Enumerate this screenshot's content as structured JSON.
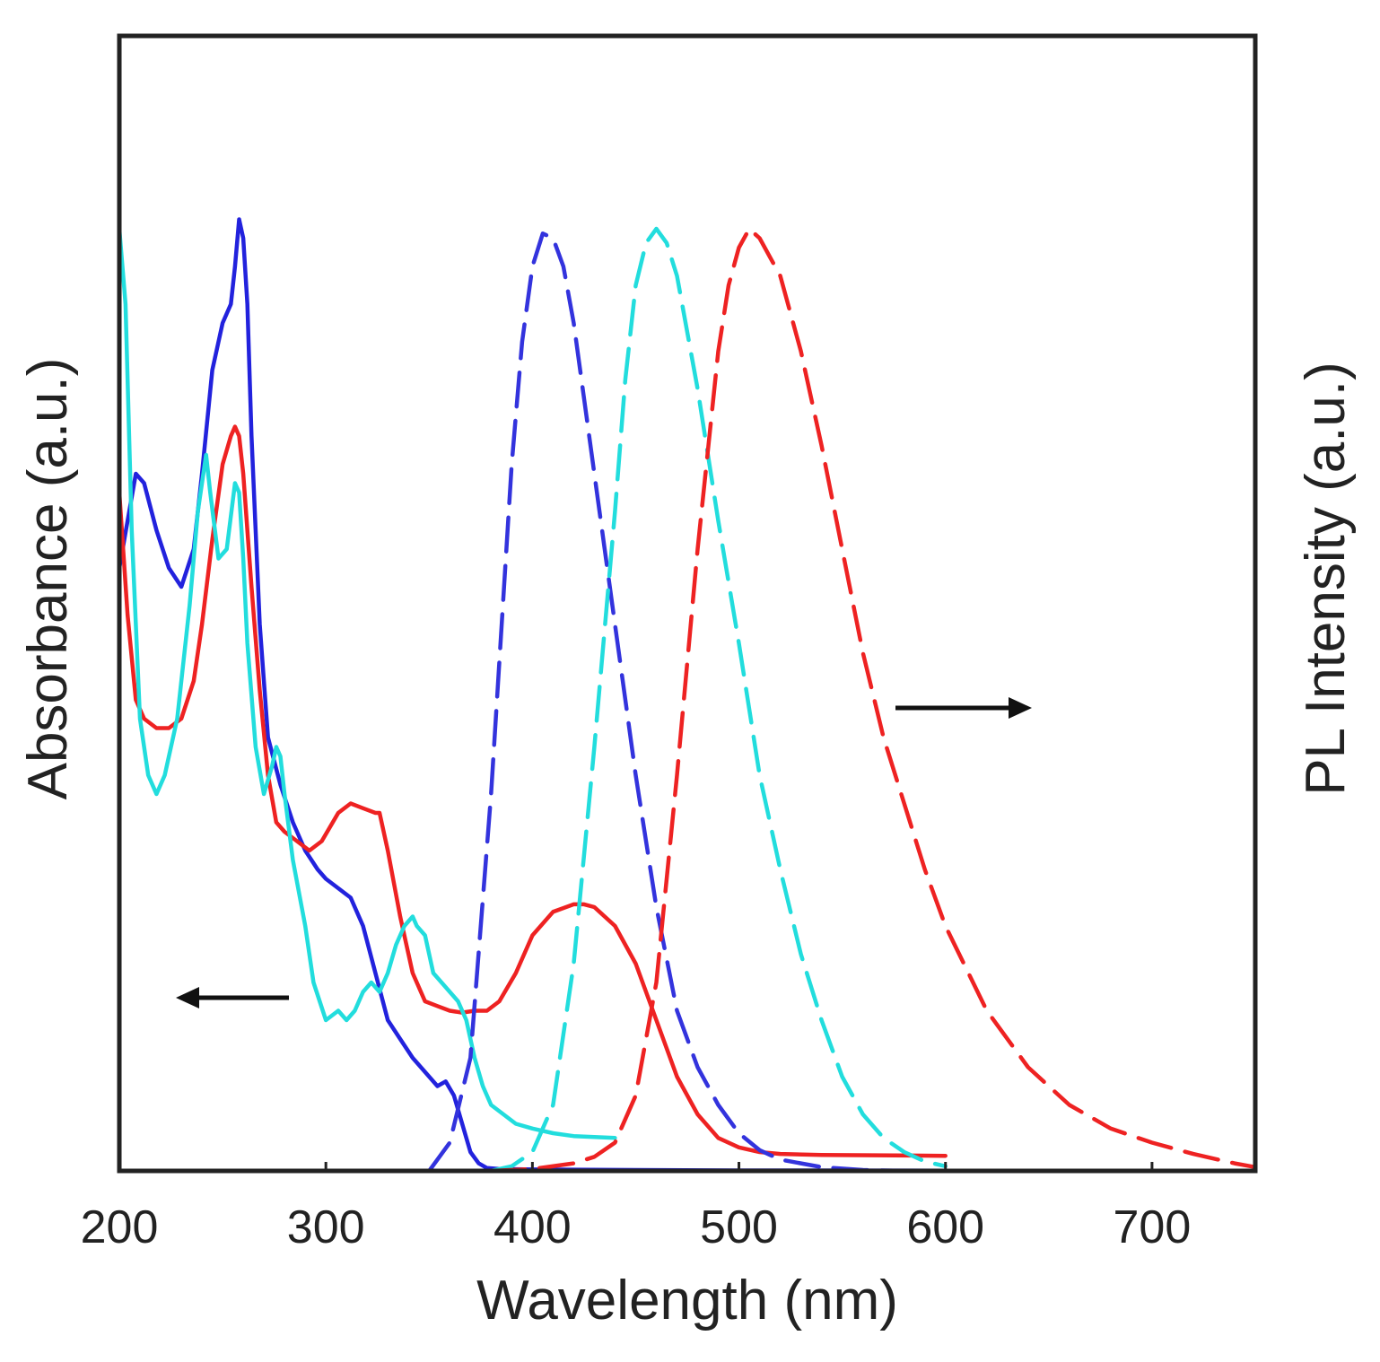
{
  "chart_data": {
    "type": "line",
    "title": "",
    "xlabel": "Wavelength (nm)",
    "ylabel_left": "Absorbance (a.u.)",
    "ylabel_right": "PL Intensity (a.u.)",
    "xlim": [
      200,
      750
    ],
    "ylim": [
      0,
      1.0
    ],
    "x_ticks": [
      200,
      300,
      400,
      500,
      600,
      700
    ],
    "x_tick_labels": [
      "200",
      "300",
      "400",
      "500",
      "600",
      "700"
    ],
    "grid": false,
    "annotations": [
      {
        "type": "arrow",
        "direction": "left",
        "meaning": "absorbance axis"
      },
      {
        "type": "arrow",
        "direction": "right",
        "meaning": "PL intensity axis"
      }
    ],
    "series": [
      {
        "name": "absorbance-blue",
        "color": "#2222dd",
        "dash": "solid",
        "axis": "left",
        "x": [
          200,
          204,
          208,
          212,
          218,
          224,
          230,
          236,
          240,
          245,
          250,
          254,
          256,
          258,
          260,
          262,
          264,
          268,
          272,
          278,
          284,
          290,
          296,
          300,
          306,
          312,
          318,
          324,
          330,
          336,
          342,
          346,
          350,
          354,
          358,
          362,
          366,
          370,
          374,
          378,
          384,
          400,
          450,
          500,
          600,
          750
        ],
        "y": [
          0.64,
          0.69,
          0.74,
          0.73,
          0.68,
          0.64,
          0.62,
          0.66,
          0.74,
          0.85,
          0.9,
          0.92,
          0.96,
          1.01,
          0.99,
          0.92,
          0.78,
          0.58,
          0.46,
          0.41,
          0.37,
          0.34,
          0.32,
          0.31,
          0.3,
          0.29,
          0.26,
          0.21,
          0.16,
          0.14,
          0.12,
          0.11,
          0.1,
          0.09,
          0.095,
          0.08,
          0.05,
          0.02,
          0.008,
          0.003,
          0.002,
          0.0015,
          0.001,
          0.0005,
          0.0003,
          0.0001
        ]
      },
      {
        "name": "absorbance-red",
        "color": "#ee2222",
        "dash": "solid",
        "axis": "left",
        "x": [
          200,
          204,
          208,
          212,
          218,
          224,
          230,
          236,
          240,
          245,
          250,
          254,
          256,
          258,
          260,
          264,
          268,
          272,
          276,
          280,
          286,
          292,
          298,
          306,
          312,
          318,
          324,
          326,
          330,
          336,
          342,
          348,
          354,
          360,
          366,
          372,
          378,
          384,
          392,
          400,
          410,
          420,
          425,
          430,
          440,
          450,
          460,
          470,
          480,
          490,
          500,
          510,
          520,
          540,
          600
        ],
        "y": [
          0.72,
          0.59,
          0.5,
          0.48,
          0.47,
          0.47,
          0.48,
          0.52,
          0.58,
          0.67,
          0.75,
          0.78,
          0.79,
          0.78,
          0.74,
          0.62,
          0.51,
          0.42,
          0.37,
          0.36,
          0.35,
          0.34,
          0.35,
          0.38,
          0.39,
          0.385,
          0.38,
          0.38,
          0.34,
          0.27,
          0.21,
          0.18,
          0.175,
          0.17,
          0.168,
          0.17,
          0.17,
          0.18,
          0.21,
          0.25,
          0.275,
          0.283,
          0.283,
          0.28,
          0.26,
          0.22,
          0.16,
          0.1,
          0.06,
          0.035,
          0.025,
          0.02,
          0.018,
          0.017,
          0.016
        ]
      },
      {
        "name": "absorbance-cyan",
        "color": "#22dddd",
        "dash": "solid",
        "axis": "left",
        "x": [
          200,
          203,
          206,
          210,
          214,
          218,
          222,
          228,
          234,
          238,
          242,
          244,
          248,
          252,
          256,
          258,
          260,
          262,
          266,
          270,
          274,
          276,
          278,
          280,
          284,
          290,
          294,
          300,
          306,
          310,
          314,
          318,
          322,
          326,
          330,
          334,
          338,
          342,
          344,
          348,
          352,
          356,
          360,
          364,
          368,
          372,
          376,
          380,
          386,
          392,
          400,
          410,
          420,
          440
        ],
        "y": [
          1.0,
          0.92,
          0.68,
          0.48,
          0.42,
          0.4,
          0.42,
          0.48,
          0.6,
          0.7,
          0.76,
          0.72,
          0.65,
          0.66,
          0.73,
          0.72,
          0.65,
          0.56,
          0.45,
          0.4,
          0.43,
          0.45,
          0.44,
          0.4,
          0.33,
          0.26,
          0.2,
          0.16,
          0.17,
          0.16,
          0.17,
          0.19,
          0.2,
          0.19,
          0.21,
          0.24,
          0.26,
          0.27,
          0.26,
          0.25,
          0.21,
          0.2,
          0.19,
          0.18,
          0.16,
          0.12,
          0.09,
          0.07,
          0.06,
          0.05,
          0.045,
          0.04,
          0.037,
          0.035
        ]
      },
      {
        "name": "pl-blue",
        "color": "#3333dd",
        "dash": "dashed",
        "axis": "right",
        "x": [
          350,
          360,
          370,
          380,
          390,
          395,
          400,
          405,
          410,
          415,
          420,
          425,
          430,
          440,
          450,
          460,
          470,
          480,
          490,
          500,
          510,
          520,
          540,
          560,
          580
        ],
        "y": [
          0.0,
          0.03,
          0.12,
          0.4,
          0.75,
          0.88,
          0.96,
          0.995,
          0.99,
          0.96,
          0.9,
          0.82,
          0.74,
          0.58,
          0.42,
          0.28,
          0.17,
          0.11,
          0.07,
          0.04,
          0.022,
          0.012,
          0.004,
          0.001,
          0.0
        ]
      },
      {
        "name": "pl-cyan",
        "color": "#22dddd",
        "dash": "dashed",
        "axis": "right",
        "x": [
          380,
          390,
          400,
          410,
          420,
          430,
          440,
          445,
          450,
          455,
          460,
          465,
          470,
          480,
          490,
          500,
          510,
          520,
          530,
          540,
          550,
          560,
          570,
          580,
          590,
          600
        ],
        "y": [
          0.0,
          0.005,
          0.02,
          0.07,
          0.22,
          0.45,
          0.7,
          0.84,
          0.94,
          0.985,
          1.0,
          0.985,
          0.95,
          0.83,
          0.69,
          0.56,
          0.42,
          0.32,
          0.23,
          0.16,
          0.1,
          0.06,
          0.035,
          0.02,
          0.01,
          0.005
        ]
      },
      {
        "name": "pl-red",
        "color": "#ee2222",
        "dash": "dashed",
        "axis": "right",
        "x": [
          380,
          400,
          420,
          430,
          440,
          450,
          460,
          470,
          480,
          490,
          495,
          500,
          505,
          510,
          520,
          530,
          540,
          550,
          560,
          570,
          580,
          590,
          600,
          620,
          640,
          660,
          680,
          700,
          720,
          740,
          750
        ],
        "y": [
          0.0,
          0.002,
          0.008,
          0.015,
          0.03,
          0.08,
          0.2,
          0.42,
          0.66,
          0.87,
          0.94,
          0.98,
          1.0,
          0.99,
          0.95,
          0.87,
          0.77,
          0.66,
          0.55,
          0.46,
          0.39,
          0.32,
          0.26,
          0.17,
          0.11,
          0.07,
          0.045,
          0.03,
          0.018,
          0.008,
          0.004
        ]
      }
    ]
  }
}
